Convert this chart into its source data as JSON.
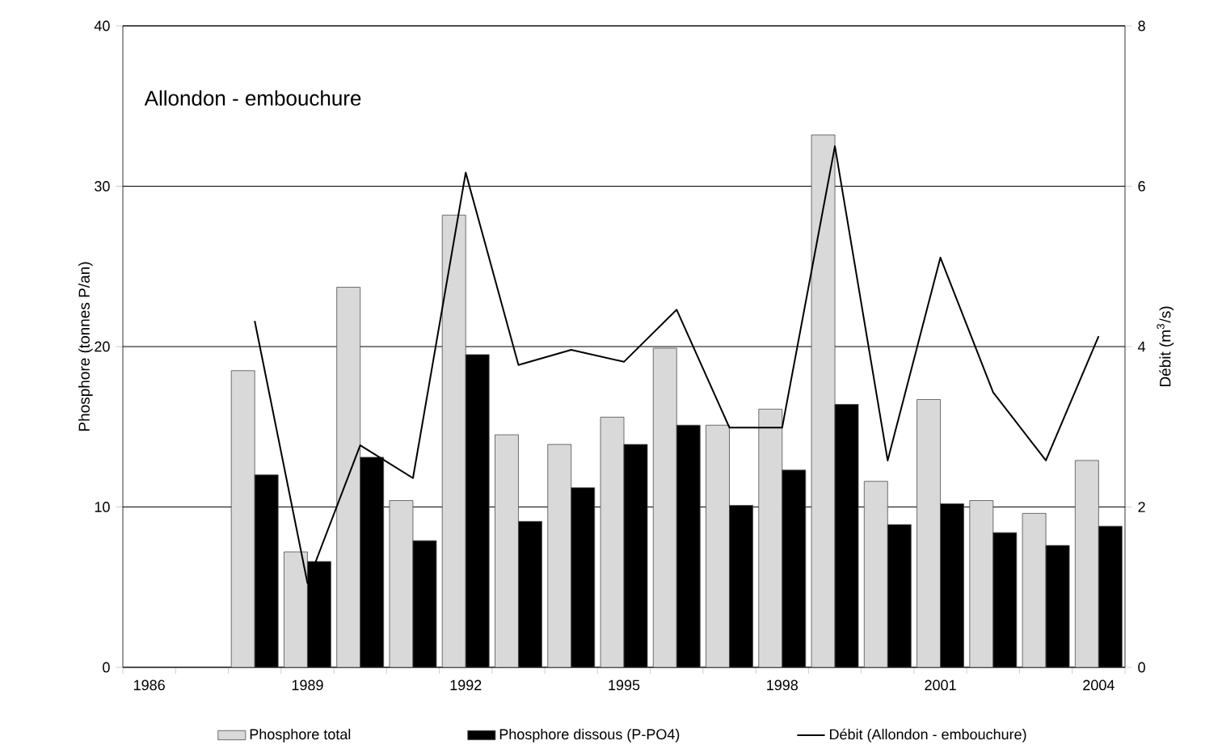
{
  "chart_data": {
    "type": "bar",
    "title": "Allondon - embouchure",
    "categories": [
      "1986",
      null,
      null,
      "1989",
      null,
      null,
      "1992",
      null,
      null,
      "1995",
      null,
      null,
      "1998",
      null,
      null,
      "2001",
      null,
      null,
      "2004"
    ],
    "series": [
      {
        "name": "Phosphore total",
        "color": "#d9d9d9",
        "values": [
          null,
          null,
          18.5,
          7.2,
          23.7,
          10.4,
          28.2,
          14.5,
          13.9,
          15.6,
          19.9,
          15.1,
          16.1,
          33.2,
          11.6,
          16.7,
          10.4,
          9.6,
          12.9
        ]
      },
      {
        "name": "Phosphore dissous (P-PO4)",
        "color": "#000000",
        "values": [
          null,
          null,
          12.0,
          6.6,
          13.1,
          7.9,
          19.5,
          9.1,
          11.2,
          13.9,
          15.1,
          10.1,
          12.3,
          16.4,
          8.9,
          10.2,
          8.4,
          7.6,
          8.8
        ]
      },
      {
        "name": "Débit (Allondon - embouchure)",
        "type": "line",
        "axis": "y2",
        "color": "#000000",
        "values": [
          null,
          null,
          4.32,
          1.05,
          2.77,
          2.36,
          6.17,
          3.77,
          3.96,
          3.81,
          4.46,
          2.99,
          2.99,
          6.5,
          2.58,
          5.11,
          3.43,
          2.58,
          4.13
        ]
      }
    ],
    "ylabel": "Phosphore (tonnes P/an)",
    "y2label": "Débit (m$^{3}$/s)",
    "ylim": [
      0,
      40
    ],
    "yticks": [
      0,
      10,
      20,
      30,
      40
    ],
    "y2lim": [
      0,
      8
    ],
    "y2ticks": [
      0,
      2,
      4,
      6,
      8
    ],
    "grid": "y",
    "legend": "bottom",
    "marker": "none",
    "line_style": "solid"
  }
}
